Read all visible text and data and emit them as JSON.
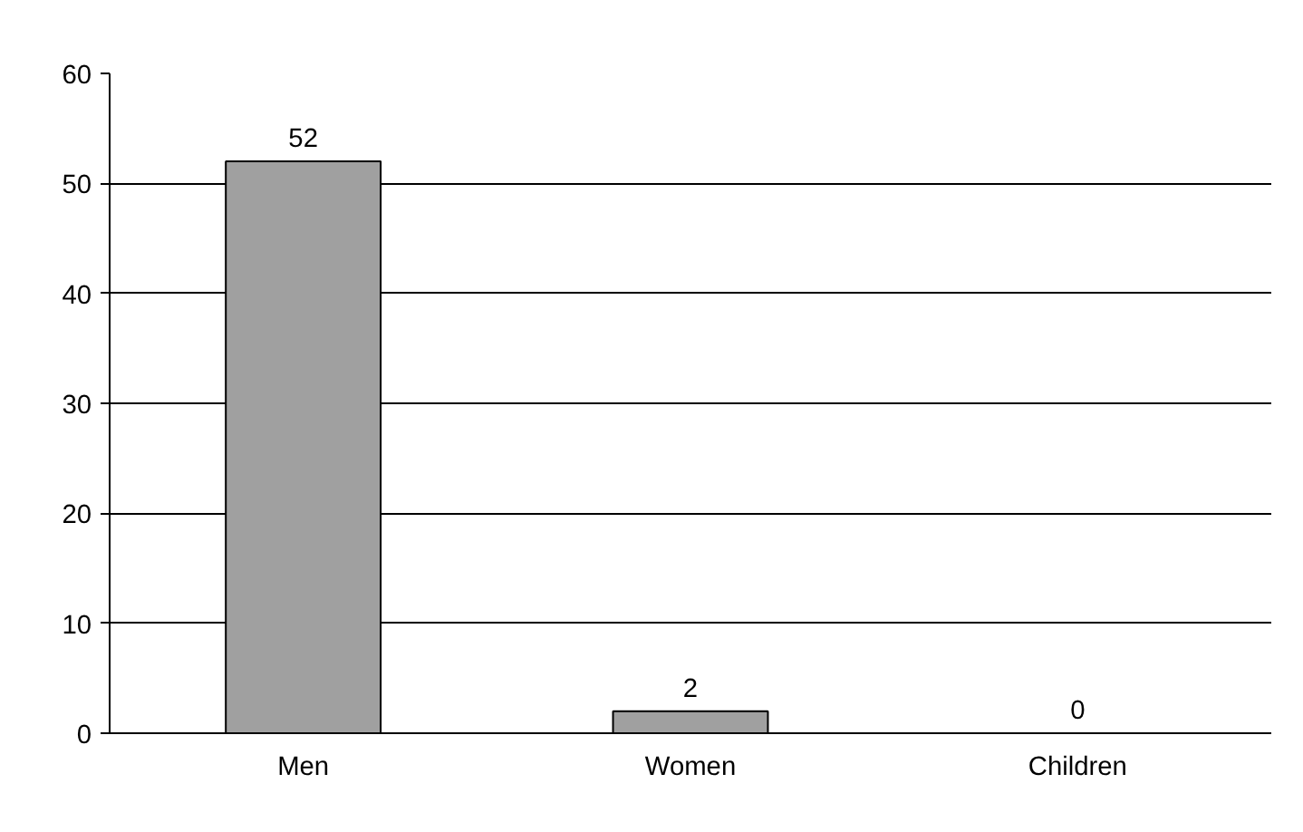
{
  "chart_data": {
    "type": "bar",
    "categories": [
      "Men",
      "Women",
      "Children"
    ],
    "values": [
      52,
      2,
      0
    ],
    "color": "#a0a0a0",
    "data_labels": true,
    "ylim": [
      0,
      60
    ],
    "yticks": [
      0,
      10,
      20,
      30,
      40,
      50,
      60
    ],
    "grid": "y"
  }
}
